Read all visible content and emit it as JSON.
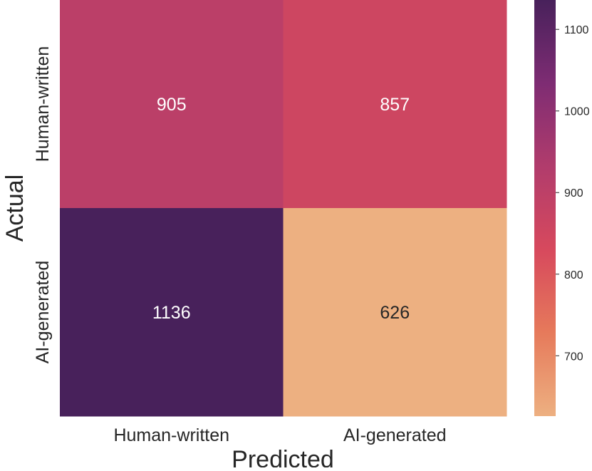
{
  "chart_data": {
    "type": "heatmap",
    "title": "",
    "xlabel": "Predicted",
    "ylabel": "Actual",
    "x_categories": [
      "Human-written",
      "AI-generated"
    ],
    "y_categories": [
      "Human-written",
      "AI-generated"
    ],
    "values": [
      [
        905,
        857
      ],
      [
        1136,
        626
      ]
    ],
    "annotations": [
      [
        "905",
        "857"
      ],
      [
        "1136",
        "626"
      ]
    ],
    "colormap": "flare",
    "vmin": 626,
    "vmax": 1136,
    "colorbar": {
      "ticks": [
        700,
        800,
        900,
        1000,
        1100
      ],
      "tick_labels": [
        "700",
        "800",
        "900",
        "1000",
        "1100"
      ]
    },
    "grid": false
  }
}
